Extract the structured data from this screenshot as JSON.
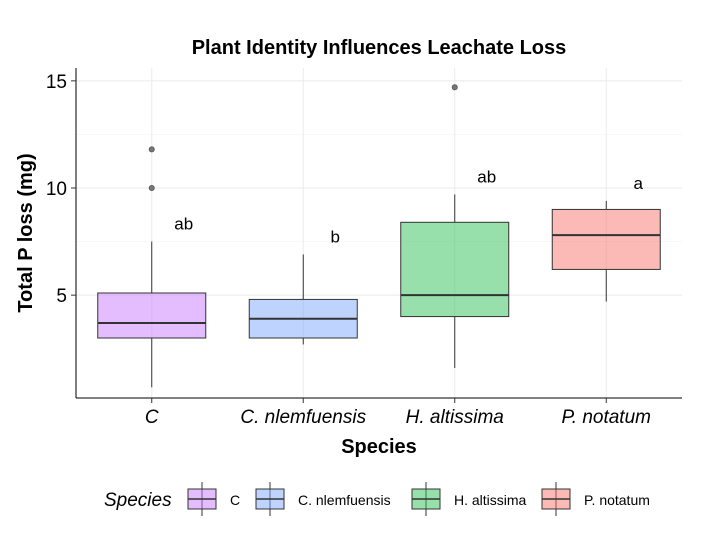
{
  "chart_data": {
    "type": "box",
    "title": "Plant Identity Influences Leachate Loss",
    "xlabel": "Species",
    "ylabel": "Total P loss (mg)",
    "ylim": [
      0.2,
      15.6
    ],
    "yticks": [
      5,
      10,
      15
    ],
    "grid": true,
    "legend": {
      "title": "Species",
      "position": "bottom",
      "entries": [
        "C",
        "C. nlemfuensis",
        "H. altissima",
        "P. notatum"
      ]
    },
    "categories": [
      "C",
      "C. nlemfuensis",
      "H. altissima",
      "P. notatum"
    ],
    "boxes": [
      {
        "category": "C",
        "whisker_low": 0.7,
        "q1": 3.0,
        "median": 3.7,
        "q3": 5.1,
        "whisker_high": 7.5,
        "outliers": [
          10.0,
          11.8
        ],
        "letter": "ab",
        "color": "#c77cff"
      },
      {
        "category": "C. nlemfuensis",
        "whisker_low": 2.7,
        "q1": 3.0,
        "median": 3.9,
        "q3": 4.8,
        "whisker_high": 6.9,
        "outliers": [],
        "letter": "b",
        "color": "#7ea9ff"
      },
      {
        "category": "H. altissima",
        "whisker_low": 1.6,
        "q1": 4.0,
        "median": 5.0,
        "q3": 8.4,
        "whisker_high": 9.7,
        "outliers": [
          14.7
        ],
        "letter": "ab",
        "color": "#31c257"
      },
      {
        "category": "P. notatum",
        "whisker_low": 4.7,
        "q1": 6.2,
        "median": 7.8,
        "q3": 9.0,
        "whisker_high": 9.4,
        "outliers": [],
        "letter": "a",
        "color": "#f8766d"
      }
    ]
  }
}
